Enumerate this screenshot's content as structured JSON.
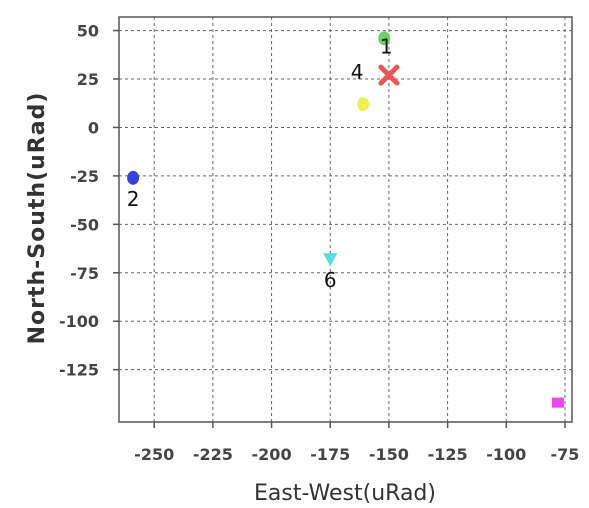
{
  "chart_data": {
    "type": "scatter",
    "title": "",
    "xlabel": "East-West(uRad)",
    "ylabel": "North-South(uRad)",
    "xlim": [
      -265,
      -72
    ],
    "ylim": [
      -152,
      57
    ],
    "xticks": [
      -250,
      -225,
      -200,
      -175,
      -150,
      -125,
      -100,
      -75
    ],
    "yticks": [
      50,
      25,
      0,
      -25,
      -50,
      -75,
      -100,
      -125
    ],
    "grid": true,
    "points": [
      {
        "label": "1",
        "x": -152,
        "y": 46,
        "color": "#66d466",
        "marker": "circle"
      },
      {
        "label": "",
        "x": -150,
        "y": 27,
        "color": "#ee5555",
        "marker": "cross"
      },
      {
        "label": "2",
        "x": -259,
        "y": -26,
        "color": "#3344dd",
        "marker": "circle"
      },
      {
        "label": "4",
        "x": -161,
        "y": 12,
        "color": "#f0f050",
        "marker": "circle"
      },
      {
        "label": "6",
        "x": -175,
        "y": -68,
        "color": "#55dddd",
        "marker": "triangle"
      },
      {
        "label": "",
        "x": -78,
        "y": -142,
        "color": "#ee44ee",
        "marker": "square"
      }
    ]
  }
}
